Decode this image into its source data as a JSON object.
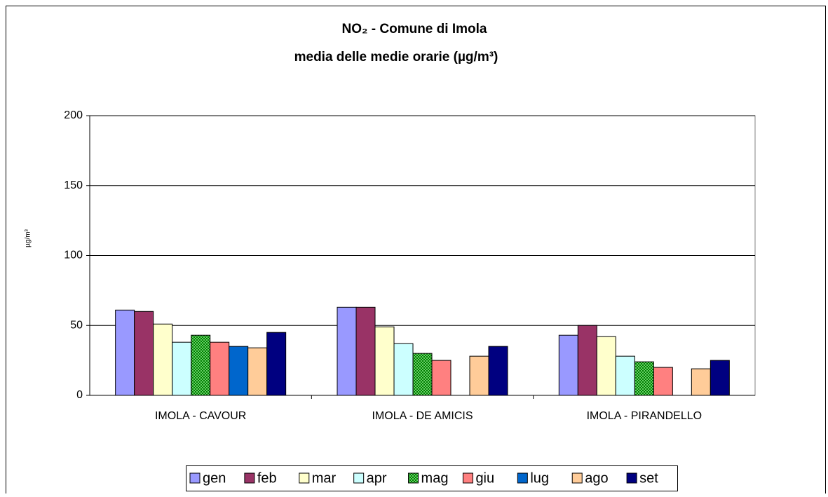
{
  "chart_data": {
    "type": "bar",
    "title": "NO₂ - Comune di Imola",
    "subtitle": "media delle medie orarie (µg/m³)",
    "y_label": "µg/m³",
    "categories": [
      "IMOLA - CAVOUR",
      "IMOLA - DE AMICIS",
      "IMOLA - PIRANDELLO"
    ],
    "series": [
      {
        "name": "gen",
        "color": "#9999ff",
        "values": [
          61,
          63,
          43
        ]
      },
      {
        "name": "feb",
        "color": "#993366",
        "values": [
          60,
          63,
          50
        ]
      },
      {
        "name": "mar",
        "color": "#ffffcc",
        "values": [
          51,
          49,
          42
        ]
      },
      {
        "name": "apr",
        "color": "#ccffff",
        "values": [
          38,
          37,
          28
        ]
      },
      {
        "name": "mag",
        "color": "#008000",
        "values": [
          43,
          30,
          24
        ]
      },
      {
        "name": "giu",
        "color": "#ff8080",
        "values": [
          38,
          25,
          20
        ]
      },
      {
        "name": "lug",
        "color": "#0066cc",
        "values": [
          35,
          null,
          null
        ]
      },
      {
        "name": "ago",
        "color": "#ffcc99",
        "values": [
          34,
          28,
          19
        ]
      },
      {
        "name": "set",
        "color": "#000080",
        "values": [
          45,
          35,
          25
        ]
      }
    ],
    "ylim": [
      0,
      200
    ],
    "yticks": [
      0,
      50,
      100,
      150,
      200
    ],
    "grid": true
  }
}
